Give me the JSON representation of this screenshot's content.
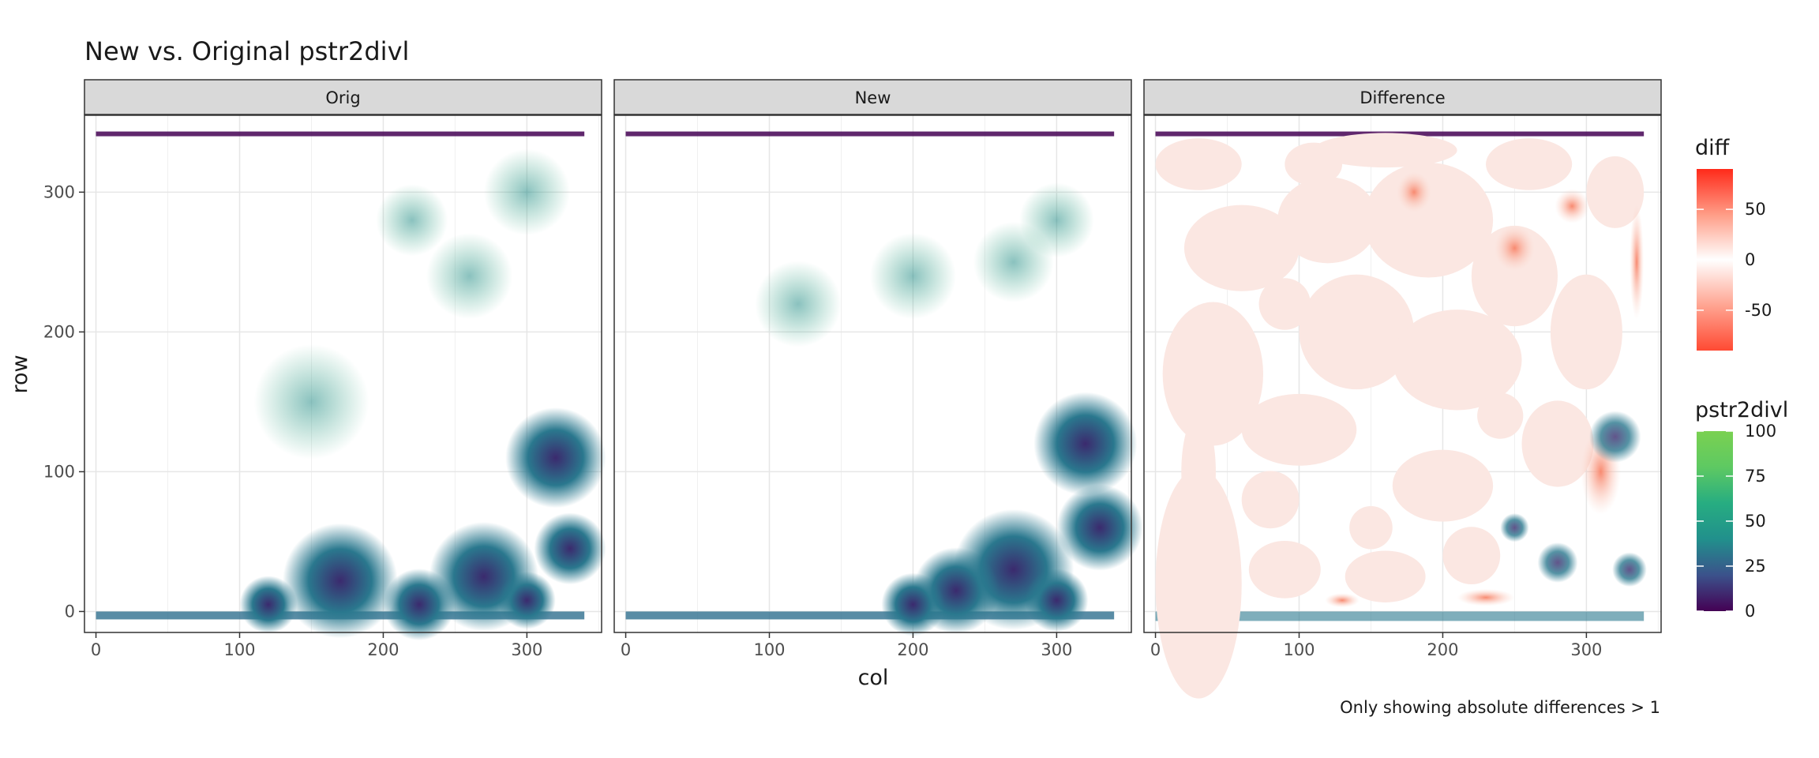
{
  "chart_data": {
    "type": "heatmap",
    "title": "New vs. Original pstr2divl",
    "xlabel": "col",
    "ylabel": "row",
    "caption": "Only showing absolute differences > 1",
    "xlim": [
      -8,
      352
    ],
    "ylim": [
      355,
      -15
    ],
    "x_ticks": [
      0,
      100,
      200,
      300
    ],
    "y_ticks": [
      0,
      100,
      200,
      300
    ],
    "grid": true,
    "panels": [
      {
        "label": "Orig"
      },
      {
        "label": "New"
      },
      {
        "label": "Difference"
      }
    ],
    "legends": [
      {
        "title": "diff",
        "type": "diverging",
        "colors": [
          "#ff4a33",
          "#ffffff",
          "#ff2a1a"
        ],
        "range": [
          -90,
          90
        ],
        "ticks": [
          50,
          0,
          -50
        ]
      },
      {
        "title": "pstr2divl",
        "type": "viridis",
        "colors": [
          "#440154",
          "#3b528b",
          "#21908c",
          "#27ad81",
          "#5ec962",
          "#7ad151"
        ],
        "range": [
          0,
          100
        ],
        "ticks": [
          100,
          75,
          50,
          25,
          0
        ]
      }
    ],
    "accent_colors": {
      "field_green": "#6cc755",
      "diff_low": "#fbe7e2",
      "diff_high": "#f7a68f",
      "strip_fill": "#d9d9d9"
    }
  }
}
